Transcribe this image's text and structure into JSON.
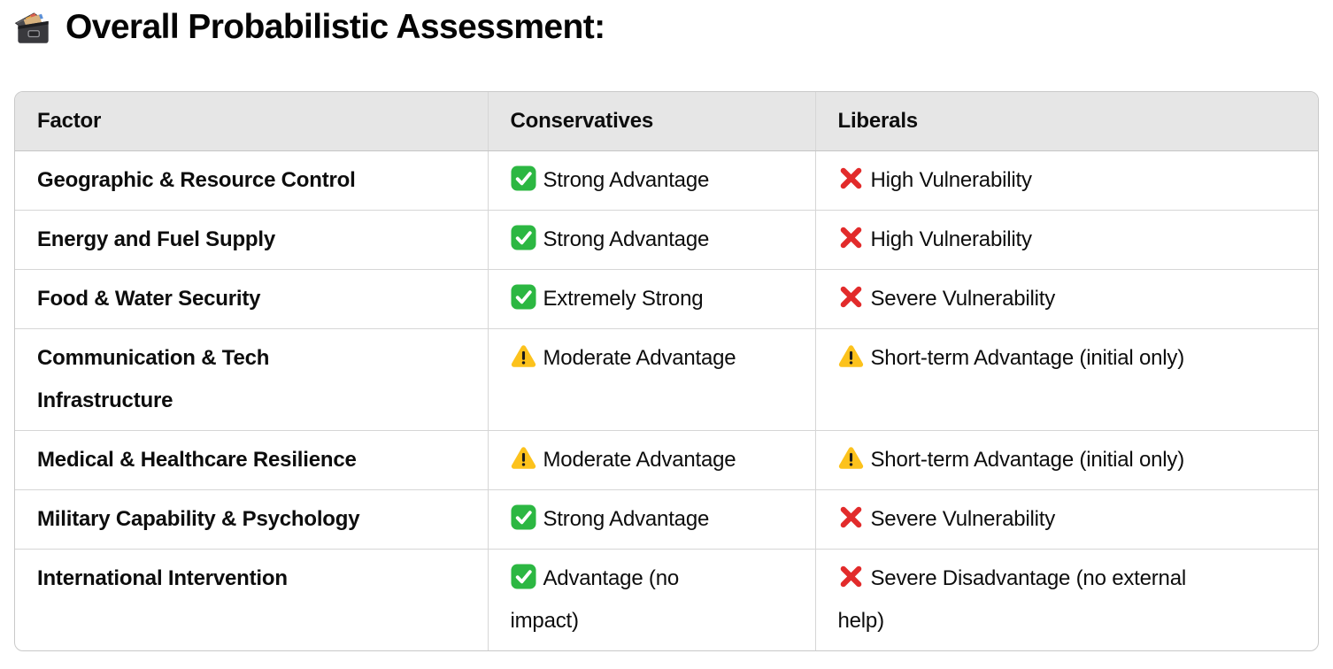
{
  "title": {
    "icon": "card-file-box-icon",
    "text": "Overall Probabilistic Assessment:"
  },
  "table": {
    "columns": [
      {
        "label": "Factor"
      },
      {
        "label": "Conservatives"
      },
      {
        "label": "Liberals"
      }
    ],
    "rows": [
      {
        "factor": "Geographic & Resource Control",
        "conservatives": {
          "icon": "check-icon",
          "text": "Strong Advantage"
        },
        "liberals": {
          "icon": "cross-icon",
          "text": "High Vulnerability"
        }
      },
      {
        "factor": "Energy and Fuel Supply",
        "conservatives": {
          "icon": "check-icon",
          "text": "Strong Advantage"
        },
        "liberals": {
          "icon": "cross-icon",
          "text": "High Vulnerability"
        }
      },
      {
        "factor": "Food & Water Security",
        "conservatives": {
          "icon": "check-icon",
          "text": "Extremely Strong"
        },
        "liberals": {
          "icon": "cross-icon",
          "text": "Severe Vulnerability"
        }
      },
      {
        "factor": "Communication & Tech\nInfrastructure",
        "conservatives": {
          "icon": "warning-icon",
          "text": "Moderate Advantage"
        },
        "liberals": {
          "icon": "warning-icon",
          "text": "Short-term Advantage (initial only)"
        }
      },
      {
        "factor": "Medical & Healthcare Resilience",
        "conservatives": {
          "icon": "warning-icon",
          "text": "Moderate Advantage"
        },
        "liberals": {
          "icon": "warning-icon",
          "text": "Short-term Advantage (initial only)"
        }
      },
      {
        "factor": "Military Capability & Psychology",
        "conservatives": {
          "icon": "check-icon",
          "text": "Strong Advantage"
        },
        "liberals": {
          "icon": "cross-icon",
          "text": "Severe Vulnerability"
        }
      },
      {
        "factor": "International Intervention",
        "conservatives": {
          "icon": "check-icon",
          "text": "Advantage (no\nimpact)"
        },
        "liberals": {
          "icon": "cross-icon",
          "text": "Severe Disadvantage (no external\nhelp)"
        }
      }
    ]
  },
  "colors": {
    "header_bg": "#e6e6e6",
    "border_outer": "#c9c9c9",
    "border_inner": "#d6d6d6",
    "border_dark": "#c5c5c5",
    "text": "#0d0d0d",
    "check_green": "#2CB742",
    "cross_red": "#E22B2B",
    "warning_yellow": "#FCC21C",
    "warning_glyph": "#1b1b1b"
  }
}
